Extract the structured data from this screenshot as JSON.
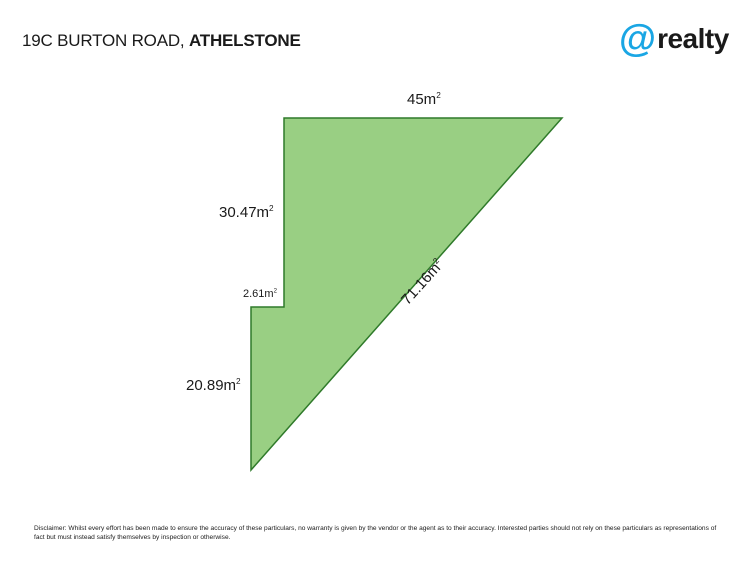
{
  "header": {
    "address_street": "19C BURTON ROAD,",
    "address_suburb": "ATHELSTONE"
  },
  "logo": {
    "symbol": "@",
    "word": "realty",
    "accent_color": "#1aa6e4"
  },
  "plan": {
    "fill_color": "#99cf83",
    "stroke_color": "#2f7a2a",
    "labels": {
      "top": {
        "value": "45m",
        "unit_sup": "2"
      },
      "upper_left": {
        "value": "30.47m",
        "unit_sup": "2"
      },
      "step": {
        "value": "2.61m",
        "unit_sup": "2"
      },
      "lower_left": {
        "value": "20.89m",
        "unit_sup": "2"
      },
      "diagonal": {
        "value": "71.16m",
        "unit_sup": "2"
      }
    }
  },
  "disclaimer": "Disclaimer: Whilst every effort has been made to ensure the accuracy of these particulars, no warranty is given by the vendor or the agent as to their accuracy. Interested parties should not rely on these particulars as representations of fact but must instead satisfy themselves by inspection or otherwise."
}
